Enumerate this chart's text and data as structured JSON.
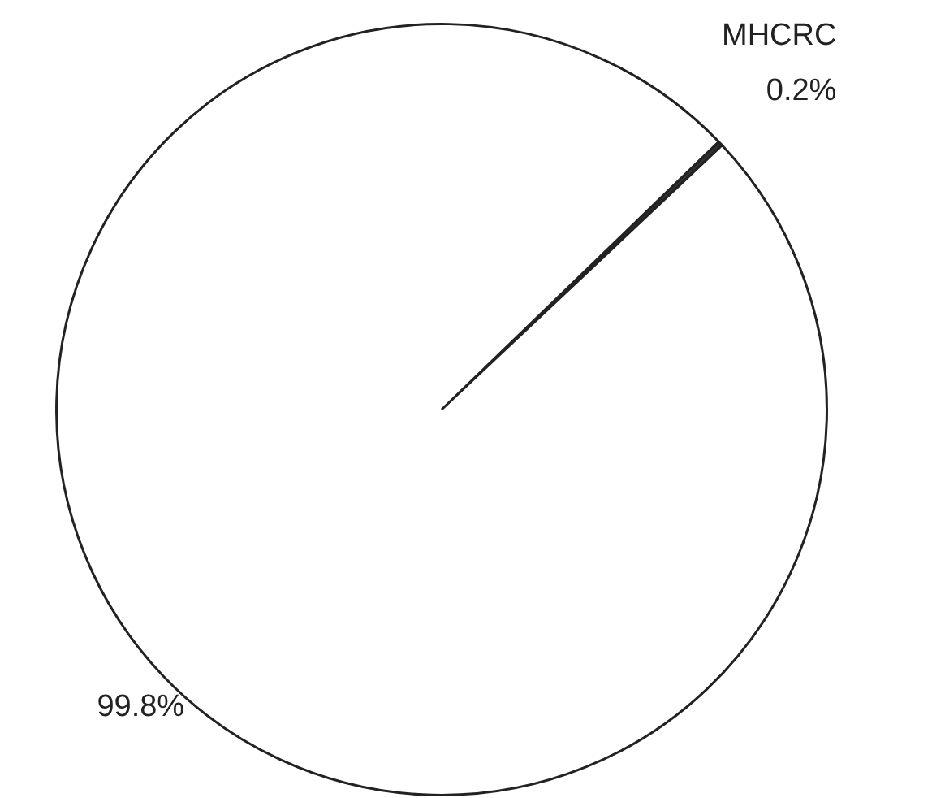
{
  "chart_data": {
    "type": "pie",
    "categories": [
      "MHCRC",
      null
    ],
    "values": [
      0.2,
      99.8
    ],
    "colors": [
      "#333333",
      "#ffffff"
    ],
    "value_labels": [
      "0.2%",
      "99.8%"
    ],
    "legend": false
  }
}
